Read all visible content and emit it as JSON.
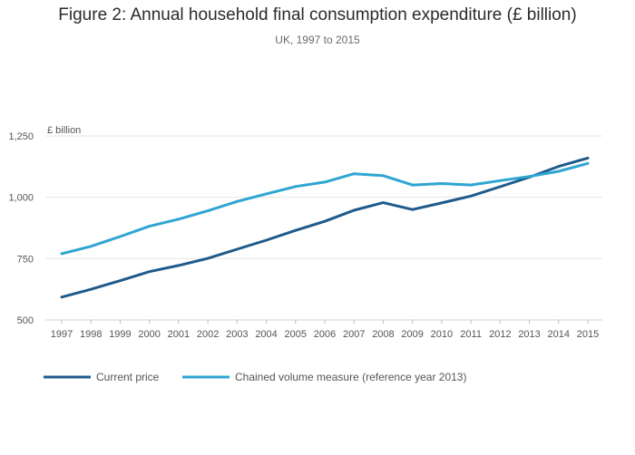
{
  "header": {
    "title": "Figure 2: Annual household final consumption expenditure (£ billion)",
    "subtitle": "UK, 1997 to 2015"
  },
  "chart_data": {
    "type": "line",
    "title": "Figure 2: Annual household final consumption expenditure (£ billion)",
    "subtitle": "UK, 1997 to 2015",
    "xlabel": "",
    "ylabel": "£ billion",
    "x": [
      "1997",
      "1998",
      "1999",
      "2000",
      "2001",
      "2002",
      "2003",
      "2004",
      "2005",
      "2006",
      "2007",
      "2008",
      "2009",
      "2010",
      "2011",
      "2012",
      "2013",
      "2014",
      "2015"
    ],
    "yticks": [
      "500",
      "750",
      "1,000",
      "1,250"
    ],
    "ylim": [
      500,
      1250
    ],
    "grid": true,
    "legend_position": "bottom-left",
    "series": [
      {
        "name": "Current price",
        "color": "#1f5a8a",
        "values": [
          593,
          625,
          660,
          697,
          722,
          751,
          788,
          825,
          865,
          902,
          947,
          978,
          950,
          977,
          1005,
          1043,
          1082,
          1126,
          1160
        ]
      },
      {
        "name": "Chained volume measure (reference year 2013)",
        "color": "#2fa5d2",
        "values": [
          770,
          800,
          840,
          882,
          911,
          945,
          983,
          1014,
          1044,
          1062,
          1096,
          1088,
          1050,
          1056,
          1050,
          1068,
          1085,
          1106,
          1138
        ]
      }
    ]
  }
}
